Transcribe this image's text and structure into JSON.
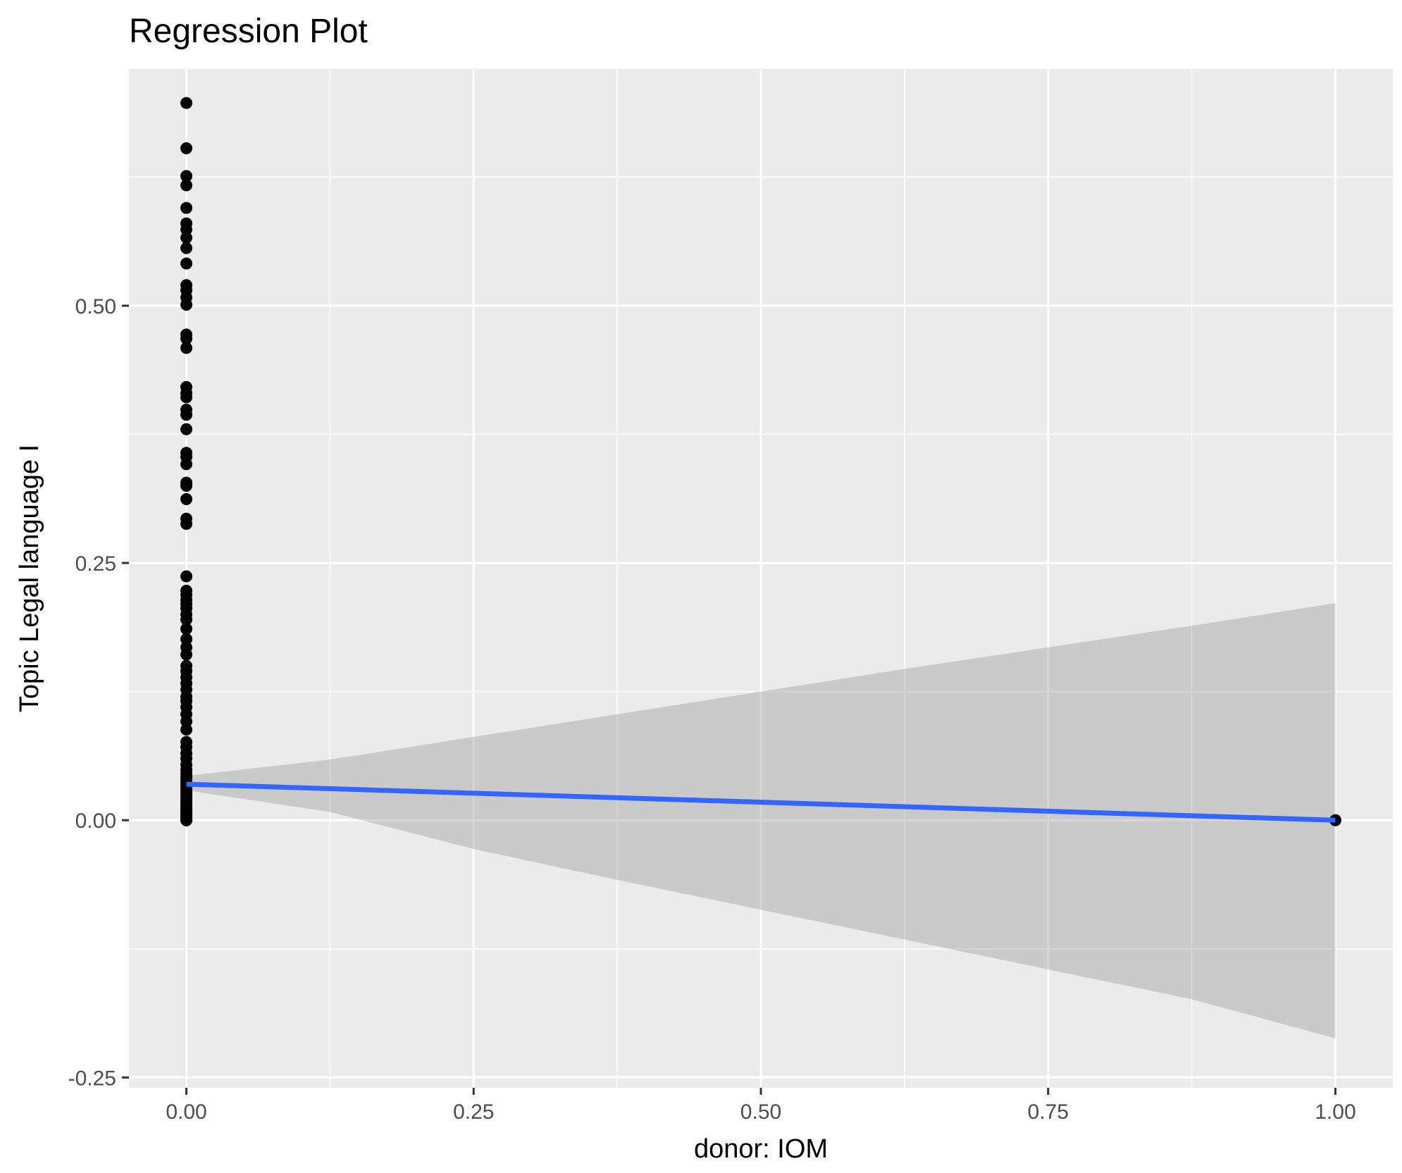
{
  "chart_data": {
    "type": "scatter",
    "title": "Regression Plot",
    "xlabel": "donor: IOM",
    "ylabel": "Topic Legal language I",
    "xlim": [
      -0.05,
      1.05
    ],
    "ylim": [
      -0.26,
      0.73
    ],
    "x_ticks": [
      0.0,
      0.25,
      0.5,
      0.75,
      1.0
    ],
    "x_tick_labels": [
      "0.00",
      "0.25",
      "0.50",
      "0.75",
      "1.00"
    ],
    "y_ticks": [
      -0.25,
      0.0,
      0.25,
      0.5
    ],
    "y_tick_labels": [
      "-0.25",
      "0.00",
      "0.25",
      "0.50"
    ],
    "grid": true,
    "legend": "none",
    "colors": {
      "panel_background": "#ebebeb",
      "grid": "#ffffff",
      "points": "#000000",
      "regression_line": "#3366ff",
      "confidence_band": "#999999"
    },
    "points": {
      "x": [
        0,
        0,
        0,
        0,
        0,
        0,
        0,
        0,
        0,
        0,
        0,
        0,
        0,
        0,
        0,
        0,
        0,
        0,
        0,
        0,
        0,
        0,
        0,
        0,
        0,
        0,
        0,
        0,
        0,
        0,
        0,
        0,
        0,
        0,
        0,
        0,
        0,
        0,
        0,
        0,
        0,
        0,
        0,
        0,
        0,
        0,
        0,
        0,
        0,
        0,
        0,
        0,
        0,
        0,
        0,
        0,
        0,
        0,
        0,
        0,
        0,
        0,
        0,
        0,
        0,
        0,
        0,
        0,
        0,
        0,
        0,
        0,
        0,
        0,
        0,
        0,
        0,
        0,
        0,
        0,
        0,
        0,
        0,
        0,
        0,
        0,
        0,
        0,
        0,
        0,
        0,
        0,
        0,
        0,
        0,
        0,
        1
      ],
      "y": [
        0.697,
        0.653,
        0.626,
        0.617,
        0.595,
        0.58,
        0.574,
        0.566,
        0.556,
        0.541,
        0.52,
        0.515,
        0.508,
        0.501,
        0.472,
        0.468,
        0.459,
        0.421,
        0.415,
        0.411,
        0.399,
        0.394,
        0.38,
        0.357,
        0.353,
        0.346,
        0.328,
        0.325,
        0.312,
        0.293,
        0.288,
        0.237,
        0.223,
        0.219,
        0.214,
        0.21,
        0.206,
        0.2,
        0.195,
        0.186,
        0.176,
        0.168,
        0.161,
        0.15,
        0.145,
        0.139,
        0.133,
        0.127,
        0.12,
        0.116,
        0.11,
        0.103,
        0.096,
        0.088,
        0.076,
        0.071,
        0.065,
        0.06,
        0.054,
        0.049,
        0.045,
        0.042,
        0.04,
        0.037,
        0.034,
        0.031,
        0.029,
        0.027,
        0.025,
        0.022,
        0.02,
        0.018,
        0.016,
        0.014,
        0.012,
        0.01,
        0.009,
        0.008,
        0.007,
        0.006,
        0.005,
        0.004,
        0.003,
        0.003,
        0.002,
        0.002,
        0.001,
        0.001,
        0.001,
        0.0005,
        0.0003,
        0.0002,
        0.0001,
        0.0,
        0.0,
        0.0,
        0.0
      ]
    },
    "regression_line": {
      "x": [
        0,
        1
      ],
      "y": [
        0.035,
        0.0
      ]
    },
    "confidence_band": {
      "x": [
        0,
        0.125,
        0.25,
        0.375,
        0.5,
        0.625,
        0.75,
        0.875,
        1
      ],
      "upper": [
        0.043,
        0.059,
        0.081,
        0.103,
        0.125,
        0.147,
        0.168,
        0.189,
        0.211
      ],
      "lower": [
        0.029,
        0.008,
        -0.028,
        -0.058,
        -0.087,
        -0.116,
        -0.145,
        -0.174,
        -0.212
      ]
    }
  }
}
